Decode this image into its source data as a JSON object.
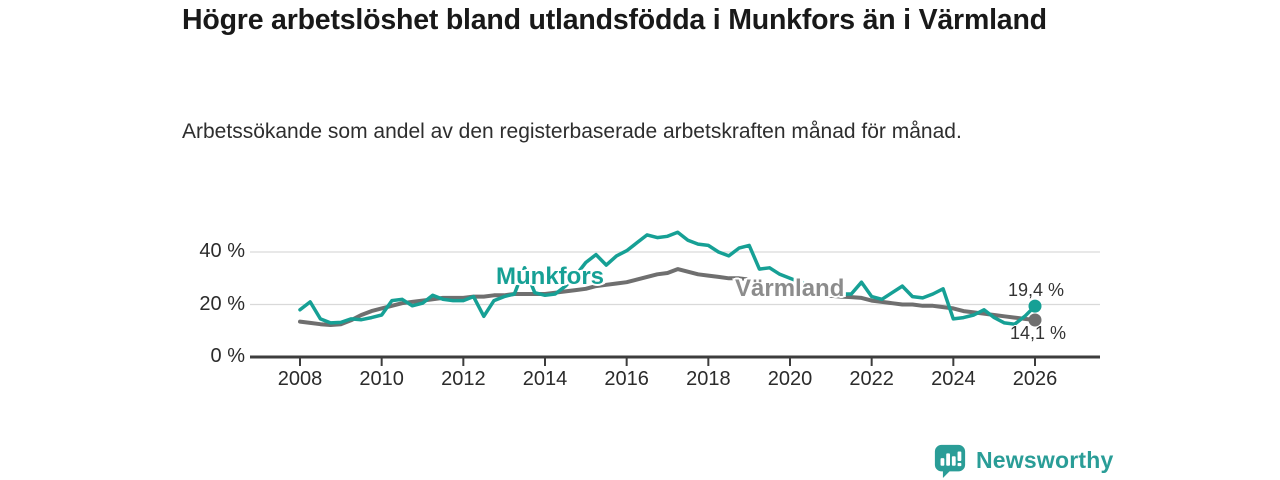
{
  "header": {
    "title": "Högre arbetslöshet bland utlandsfödda i Munkfors än i Värmland",
    "subtitle": "Arbetssökande som andel av den registerbaserade arbetskraften månad för månad."
  },
  "chart_data": {
    "type": "line",
    "title": "Högre arbetslöshet bland utlandsfödda i Munkfors än i Värmland",
    "subtitle": "Arbetssökande som andel av den registerbaserade arbetskraften månad för månad.",
    "x_start": 2008,
    "x_step": 0.25,
    "x_axis": {
      "min": 2008,
      "max": 2026,
      "ticks": [
        2008,
        2010,
        2012,
        2014,
        2016,
        2018,
        2020,
        2022,
        2024,
        2026
      ]
    },
    "y_axis": {
      "min": 0,
      "grid_max": 40,
      "ticks": [
        0,
        20,
        40
      ],
      "tick_suffix": " %"
    },
    "grid": "horizontal",
    "colors": {
      "grid": "#d9d9d9",
      "axis": "#3d3d3d"
    },
    "series": [
      {
        "key": "varmland",
        "name": "Värmland",
        "color": "#6f6f6f",
        "width": 4,
        "end_label": "14,1 %",
        "end_value": 14.1,
        "values": [
          13.5,
          13,
          12.5,
          12.2,
          12.5,
          14,
          16,
          17.5,
          18.5,
          19.5,
          20.5,
          21,
          21.5,
          22,
          22.5,
          22.5,
          22.5,
          23,
          23,
          23.5,
          23.5,
          24,
          24,
          24,
          24,
          24.5,
          25,
          25.5,
          26,
          27,
          27.5,
          28,
          28.5,
          29.5,
          30.5,
          31.5,
          32,
          33.5,
          32.5,
          31.5,
          31,
          30.5,
          30,
          30,
          29.5,
          28,
          27.5,
          27,
          26,
          25.5,
          24.5,
          24,
          23.3,
          23,
          22.8,
          22.5,
          21.5,
          21,
          20.5,
          20,
          20,
          19.5,
          19.5,
          19,
          18.5,
          17.5,
          17,
          16.5,
          16,
          15.5,
          15,
          14.5,
          14.1
        ]
      },
      {
        "key": "munkfors",
        "name": "Munkfors",
        "color": "#16a095",
        "width": 3.5,
        "end_label": "19,4 %",
        "end_value": 19.4,
        "values": [
          18,
          21,
          14.5,
          13,
          13.2,
          14.5,
          14.2,
          15,
          16,
          21.5,
          22,
          19.5,
          20.5,
          23.5,
          22,
          21.5,
          21.5,
          23,
          15.5,
          21.5,
          23,
          24,
          34,
          24.5,
          23.5,
          24,
          27,
          31,
          36,
          39,
          35,
          38.5,
          40.5,
          43.5,
          46.5,
          45.5,
          46,
          47.5,
          44.5,
          43,
          42.5,
          40,
          38.5,
          41.5,
          42.5,
          33.5,
          34,
          31.5,
          30,
          28.5,
          27,
          26,
          25,
          24,
          24,
          28.5,
          23,
          22,
          24.5,
          27,
          23,
          22.5,
          24,
          26,
          14.5,
          15,
          16,
          18,
          15,
          13,
          12.5,
          15.5,
          19.4
        ]
      }
    ]
  },
  "footer": {
    "brand": "Newsworthy"
  }
}
